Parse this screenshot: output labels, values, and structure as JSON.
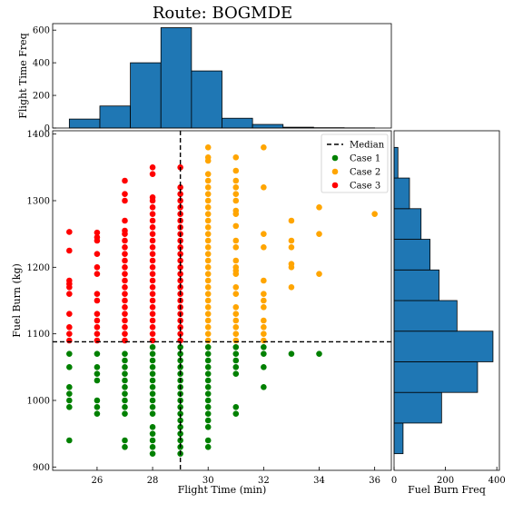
{
  "title": "Route: BOGMDE",
  "colors": {
    "bar": "#1f77b4",
    "case1": "#008000",
    "case2": "#ffa500",
    "case3": "#ff0000",
    "median": "#000000"
  },
  "chart_data": [
    {
      "id": "scatter",
      "type": "scatter",
      "xlabel": "Flight Time (min)",
      "ylabel": "Fuel Burn (kg)",
      "xlim": [
        24.4,
        36.6
      ],
      "ylim": [
        895,
        1405
      ],
      "xticks": [
        26,
        28,
        30,
        32,
        34,
        36
      ],
      "yticks": [
        900,
        1000,
        1100,
        1200,
        1300,
        1400
      ],
      "median": {
        "x": 29,
        "y": 1088,
        "label": "Median"
      },
      "legend_position": "top-right",
      "series": [
        {
          "name": "Case 1",
          "color": "#008000",
          "points": [
            [
              25,
              940
            ],
            [
              25,
              990
            ],
            [
              25,
              1000
            ],
            [
              25,
              1010
            ],
            [
              25,
              1020
            ],
            [
              25,
              1050
            ],
            [
              25,
              1070
            ],
            [
              26,
              980
            ],
            [
              26,
              990
            ],
            [
              26,
              1000
            ],
            [
              26,
              1030
            ],
            [
              26,
              1040
            ],
            [
              26,
              1050
            ],
            [
              26,
              1070
            ],
            [
              27,
              930
            ],
            [
              27,
              940
            ],
            [
              27,
              980
            ],
            [
              27,
              990
            ],
            [
              27,
              1000
            ],
            [
              27,
              1010
            ],
            [
              27,
              1020
            ],
            [
              27,
              1030
            ],
            [
              27,
              1040
            ],
            [
              27,
              1050
            ],
            [
              27,
              1060
            ],
            [
              27,
              1070
            ],
            [
              28,
              920
            ],
            [
              28,
              930
            ],
            [
              28,
              940
            ],
            [
              28,
              950
            ],
            [
              28,
              960
            ],
            [
              28,
              980
            ],
            [
              28,
              990
            ],
            [
              28,
              1000
            ],
            [
              28,
              1010
            ],
            [
              28,
              1020
            ],
            [
              28,
              1030
            ],
            [
              28,
              1040
            ],
            [
              28,
              1050
            ],
            [
              28,
              1060
            ],
            [
              28,
              1070
            ],
            [
              28,
              1080
            ],
            [
              29,
              920
            ],
            [
              29,
              930
            ],
            [
              29,
              940
            ],
            [
              29,
              950
            ],
            [
              29,
              960
            ],
            [
              29,
              970
            ],
            [
              29,
              980
            ],
            [
              29,
              990
            ],
            [
              29,
              1000
            ],
            [
              29,
              1010
            ],
            [
              29,
              1020
            ],
            [
              29,
              1030
            ],
            [
              29,
              1040
            ],
            [
              29,
              1050
            ],
            [
              29,
              1060
            ],
            [
              29,
              1070
            ],
            [
              29,
              1080
            ],
            [
              30,
              930
            ],
            [
              30,
              940
            ],
            [
              30,
              960
            ],
            [
              30,
              970
            ],
            [
              30,
              980
            ],
            [
              30,
              990
            ],
            [
              30,
              1000
            ],
            [
              30,
              1010
            ],
            [
              30,
              1020
            ],
            [
              30,
              1030
            ],
            [
              30,
              1040
            ],
            [
              30,
              1050
            ],
            [
              30,
              1060
            ],
            [
              30,
              1070
            ],
            [
              30,
              1080
            ],
            [
              31,
              980
            ],
            [
              31,
              990
            ],
            [
              31,
              1040
            ],
            [
              31,
              1050
            ],
            [
              31,
              1060
            ],
            [
              31,
              1070
            ],
            [
              31,
              1080
            ],
            [
              32,
              1020
            ],
            [
              32,
              1050
            ],
            [
              32,
              1070
            ],
            [
              32,
              1080
            ],
            [
              33,
              1070
            ],
            [
              34,
              1070
            ]
          ]
        },
        {
          "name": "Case 2",
          "color": "#ffa500",
          "points": [
            [
              30,
              1090
            ],
            [
              30,
              1100
            ],
            [
              30,
              1110
            ],
            [
              30,
              1120
            ],
            [
              30,
              1130
            ],
            [
              30,
              1140
            ],
            [
              30,
              1150
            ],
            [
              30,
              1160
            ],
            [
              30,
              1170
            ],
            [
              30,
              1180
            ],
            [
              30,
              1190
            ],
            [
              30,
              1200
            ],
            [
              30,
              1210
            ],
            [
              30,
              1220
            ],
            [
              30,
              1230
            ],
            [
              30,
              1240
            ],
            [
              30,
              1250
            ],
            [
              30,
              1260
            ],
            [
              30,
              1270
            ],
            [
              30,
              1280
            ],
            [
              30,
              1290
            ],
            [
              30,
              1300
            ],
            [
              30,
              1310
            ],
            [
              30,
              1320
            ],
            [
              30,
              1330
            ],
            [
              30,
              1340
            ],
            [
              30,
              1360
            ],
            [
              30,
              1365
            ],
            [
              30,
              1380
            ],
            [
              31,
              1090
            ],
            [
              31,
              1100
            ],
            [
              31,
              1110
            ],
            [
              31,
              1120
            ],
            [
              31,
              1130
            ],
            [
              31,
              1140
            ],
            [
              31,
              1160
            ],
            [
              31,
              1170
            ],
            [
              31,
              1190
            ],
            [
              31,
              1195
            ],
            [
              31,
              1200
            ],
            [
              31,
              1210
            ],
            [
              31,
              1230
            ],
            [
              31,
              1240
            ],
            [
              31,
              1262
            ],
            [
              31,
              1280
            ],
            [
              31,
              1285
            ],
            [
              31,
              1300
            ],
            [
              31,
              1310
            ],
            [
              31,
              1320
            ],
            [
              31,
              1330
            ],
            [
              31,
              1345
            ],
            [
              31,
              1365
            ],
            [
              32,
              1090
            ],
            [
              32,
              1100
            ],
            [
              32,
              1110
            ],
            [
              32,
              1120
            ],
            [
              32,
              1140
            ],
            [
              32,
              1150
            ],
            [
              32,
              1160
            ],
            [
              32,
              1180
            ],
            [
              32,
              1230
            ],
            [
              32,
              1250
            ],
            [
              32,
              1320
            ],
            [
              32,
              1380
            ],
            [
              33,
              1170
            ],
            [
              33,
              1200
            ],
            [
              33,
              1205
            ],
            [
              33,
              1230
            ],
            [
              33,
              1240
            ],
            [
              33,
              1270
            ],
            [
              34,
              1190
            ],
            [
              34,
              1250
            ],
            [
              34,
              1290
            ],
            [
              36,
              1280
            ]
          ]
        },
        {
          "name": "Case 3",
          "color": "#ff0000",
          "points": [
            [
              25,
              1090
            ],
            [
              25,
              1100
            ],
            [
              25,
              1110
            ],
            [
              25,
              1130
            ],
            [
              25,
              1160
            ],
            [
              25,
              1170
            ],
            [
              25,
              1175
            ],
            [
              25,
              1180
            ],
            [
              25,
              1225
            ],
            [
              25,
              1253
            ],
            [
              26,
              1090
            ],
            [
              26,
              1100
            ],
            [
              26,
              1110
            ],
            [
              26,
              1120
            ],
            [
              26,
              1130
            ],
            [
              26,
              1150
            ],
            [
              26,
              1160
            ],
            [
              26,
              1190
            ],
            [
              26,
              1200
            ],
            [
              26,
              1220
            ],
            [
              26,
              1240
            ],
            [
              26,
              1245
            ],
            [
              26,
              1252
            ],
            [
              27,
              1090
            ],
            [
              27,
              1100
            ],
            [
              27,
              1110
            ],
            [
              27,
              1120
            ],
            [
              27,
              1130
            ],
            [
              27,
              1140
            ],
            [
              27,
              1150
            ],
            [
              27,
              1160
            ],
            [
              27,
              1170
            ],
            [
              27,
              1180
            ],
            [
              27,
              1190
            ],
            [
              27,
              1200
            ],
            [
              27,
              1210
            ],
            [
              27,
              1220
            ],
            [
              27,
              1230
            ],
            [
              27,
              1240
            ],
            [
              27,
              1250
            ],
            [
              27,
              1255
            ],
            [
              27,
              1270
            ],
            [
              27,
              1300
            ],
            [
              27,
              1310
            ],
            [
              27,
              1330
            ],
            [
              28,
              1090
            ],
            [
              28,
              1100
            ],
            [
              28,
              1110
            ],
            [
              28,
              1120
            ],
            [
              28,
              1130
            ],
            [
              28,
              1140
            ],
            [
              28,
              1150
            ],
            [
              28,
              1160
            ],
            [
              28,
              1170
            ],
            [
              28,
              1180
            ],
            [
              28,
              1190
            ],
            [
              28,
              1200
            ],
            [
              28,
              1210
            ],
            [
              28,
              1220
            ],
            [
              28,
              1230
            ],
            [
              28,
              1240
            ],
            [
              28,
              1250
            ],
            [
              28,
              1260
            ],
            [
              28,
              1270
            ],
            [
              28,
              1280
            ],
            [
              28,
              1290
            ],
            [
              28,
              1300
            ],
            [
              28,
              1305
            ],
            [
              28,
              1340
            ],
            [
              28,
              1350
            ],
            [
              29,
              1090
            ],
            [
              29,
              1100
            ],
            [
              29,
              1110
            ],
            [
              29,
              1120
            ],
            [
              29,
              1130
            ],
            [
              29,
              1140
            ],
            [
              29,
              1150
            ],
            [
              29,
              1160
            ],
            [
              29,
              1170
            ],
            [
              29,
              1180
            ],
            [
              29,
              1190
            ],
            [
              29,
              1200
            ],
            [
              29,
              1210
            ],
            [
              29,
              1220
            ],
            [
              29,
              1230
            ],
            [
              29,
              1240
            ],
            [
              29,
              1250
            ],
            [
              29,
              1260
            ],
            [
              29,
              1270
            ],
            [
              29,
              1280
            ],
            [
              29,
              1290
            ],
            [
              29,
              1300
            ],
            [
              29,
              1310
            ],
            [
              29,
              1320
            ],
            [
              29,
              1350
            ]
          ]
        }
      ]
    },
    {
      "id": "flight-time-hist",
      "type": "bar",
      "ylabel": "Flight Time Freq",
      "xlim": [
        24.4,
        36.6
      ],
      "ylim": [
        0,
        640
      ],
      "yticks": [
        0,
        200,
        400,
        600
      ],
      "bin_edges": [
        25,
        26.1,
        27.2,
        28.3,
        29.4,
        30.5,
        31.6,
        32.7,
        33.8,
        34.9,
        36
      ],
      "values": [
        55,
        135,
        400,
        615,
        350,
        60,
        22,
        5,
        2,
        1
      ]
    },
    {
      "id": "fuel-burn-hist",
      "type": "bar",
      "orientation": "horizontal",
      "xlabel": "Fuel Burn Freq",
      "xlim": [
        0,
        410
      ],
      "xticks": [
        0,
        200,
        400
      ],
      "ylim": [
        895,
        1405
      ],
      "bin_edges": [
        920,
        966,
        1012,
        1058,
        1104,
        1150,
        1196,
        1242,
        1288,
        1334,
        1380
      ],
      "values": [
        35,
        185,
        325,
        385,
        245,
        175,
        140,
        105,
        60,
        15
      ]
    }
  ]
}
